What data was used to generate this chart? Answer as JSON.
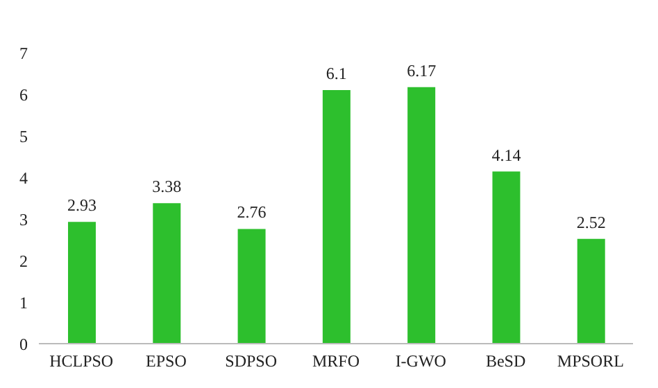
{
  "chart_data": {
    "type": "bar",
    "categories": [
      "HCLPSO",
      "EPSO",
      "SDPSO",
      "MRFO",
      "I-GWO",
      "BeSD",
      "MPSORL"
    ],
    "values": [
      2.93,
      3.38,
      2.76,
      6.1,
      6.17,
      4.14,
      2.52
    ],
    "color": "#2dbf2d",
    "ylim": [
      0,
      7
    ],
    "yticks": [
      0,
      1,
      2,
      3,
      4,
      5,
      6,
      7
    ],
    "data_labels": true
  }
}
